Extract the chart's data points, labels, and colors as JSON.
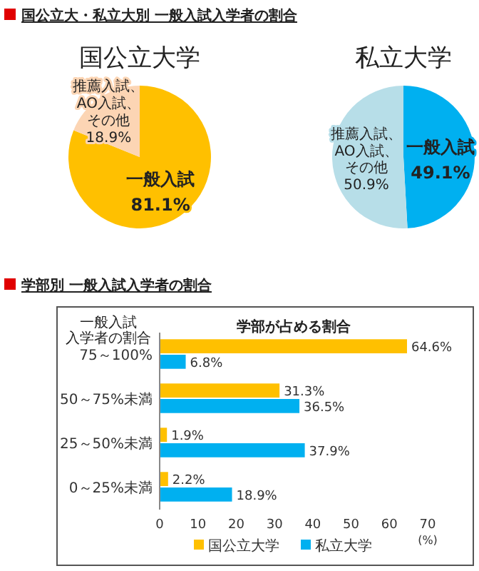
{
  "chart_data": [
    {
      "type": "pie",
      "title": "国公立大学",
      "annotations": [
        "国公立大・私立大別 一般入試入学者の割合"
      ],
      "categories": [
        "一般入試",
        "推薦入試、AO入試、その他"
      ],
      "values": [
        81.1,
        18.9
      ],
      "colors": [
        "#ffc000",
        "#fcd5b4"
      ],
      "value_labels": [
        "81.1%",
        "18.9%"
      ]
    },
    {
      "type": "pie",
      "title": "私立大学",
      "categories": [
        "一般入試",
        "推薦入試、AO入試、その他"
      ],
      "values": [
        49.1,
        50.9
      ],
      "colors": [
        "#00b0f0",
        "#b7dee8"
      ],
      "value_labels": [
        "49.1%",
        "50.9%"
      ]
    },
    {
      "type": "bar",
      "orientation": "horizontal",
      "title": "学部別 一般入試入学者の割合",
      "subtitle": "学部が占める割合",
      "ylabel": "一般入試入学者の割合",
      "xlabel": "(%)",
      "categories": [
        "75～100%",
        "50～75%未満",
        "25～50%未満",
        "0～25%未満"
      ],
      "series": [
        {
          "name": "国公立大学",
          "color": "#ffc000",
          "values": [
            64.6,
            31.3,
            1.9,
            2.2
          ],
          "value_labels": [
            "64.6%",
            "31.3%",
            "1.9%",
            "2.2%"
          ]
        },
        {
          "name": "私立大学",
          "color": "#00b0f0",
          "values": [
            6.8,
            36.5,
            37.9,
            18.9
          ],
          "value_labels": [
            "6.8%",
            "36.5%",
            "37.9%",
            "18.9%"
          ]
        }
      ],
      "xlim": [
        0,
        70
      ],
      "xticks": [
        0,
        10,
        20,
        30,
        40,
        50,
        60,
        70
      ],
      "legend": "bottom"
    }
  ]
}
